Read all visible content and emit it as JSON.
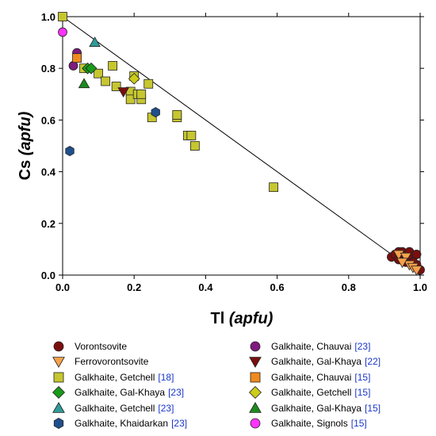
{
  "colors": {
    "vorontsovite": "#7a0f0f",
    "ferrovorontsovite": "#f6a14b",
    "getchell18": "#c6c630",
    "galkhaya23": "#1a9a1a",
    "getchell23": "#2f9b96",
    "khaidarkan23": "#1f4f8c",
    "chauvai23": "#7f1a7f",
    "galkhaya22": "#7a0f0f",
    "chauvai15": "#f08a1e",
    "getchell15": "#cccc1a",
    "galkhaya15": "#1d8a1d",
    "signols15": "#ff33ff"
  },
  "chart_data": {
    "type": "scatter",
    "xlabel_main": "Tl",
    "xlabel_unit": "(apfu)",
    "ylabel_main": "Cs",
    "ylabel_unit": "(apfu)",
    "xlim": [
      0,
      1
    ],
    "ylim": [
      0,
      1
    ],
    "x_ticks": [
      "0.0",
      "0.2",
      "0.4",
      "0.6",
      "0.8",
      "1.0"
    ],
    "y_ticks": [
      "0.0",
      "0.2",
      "0.4",
      "0.6",
      "0.8",
      "1.0"
    ],
    "reference_line": {
      "x": [
        0,
        1
      ],
      "y": [
        1,
        0
      ]
    },
    "legend_position": "bottom",
    "series": [
      {
        "key": "vorontsovite",
        "name": "Vorontsovite",
        "ref": "",
        "marker": "circle",
        "points": [
          [
            0.92,
            0.07
          ],
          [
            0.93,
            0.08
          ],
          [
            0.94,
            0.09
          ],
          [
            0.95,
            0.09
          ],
          [
            0.96,
            0.08
          ],
          [
            0.97,
            0.09
          ],
          [
            0.98,
            0.07
          ],
          [
            0.97,
            0.06
          ],
          [
            0.99,
            0.04
          ],
          [
            0.99,
            0.08
          ],
          [
            0.96,
            0.05
          ],
          [
            0.95,
            0.07
          ],
          [
            0.94,
            0.06
          ],
          [
            0.98,
            0.05
          ],
          [
            1.0,
            0.02
          ]
        ]
      },
      {
        "key": "ferrovorontsovite",
        "name": "Ferrovorontsovite",
        "ref": "",
        "marker": "triangle-down",
        "points": [
          [
            0.94,
            0.08
          ],
          [
            0.96,
            0.07
          ],
          [
            0.97,
            0.04
          ],
          [
            0.98,
            0.03
          ],
          [
            0.99,
            0.02
          ],
          [
            0.95,
            0.05
          ]
        ]
      },
      {
        "key": "getchell18",
        "name": "Galkhaite, Getchell",
        "ref": "[18]",
        "marker": "square",
        "points": [
          [
            0.0,
            1.0
          ],
          [
            0.06,
            0.8
          ],
          [
            0.1,
            0.78
          ],
          [
            0.12,
            0.75
          ],
          [
            0.14,
            0.81
          ],
          [
            0.15,
            0.73
          ],
          [
            0.19,
            0.71
          ],
          [
            0.19,
            0.68
          ],
          [
            0.2,
            0.77
          ],
          [
            0.21,
            0.7
          ],
          [
            0.22,
            0.68
          ],
          [
            0.22,
            0.7
          ],
          [
            0.24,
            0.74
          ],
          [
            0.25,
            0.61
          ],
          [
            0.32,
            0.61
          ],
          [
            0.32,
            0.62
          ],
          [
            0.35,
            0.54
          ],
          [
            0.36,
            0.54
          ],
          [
            0.37,
            0.5
          ],
          [
            0.59,
            0.34
          ]
        ]
      },
      {
        "key": "galkhaya23",
        "name": "Galkhaite, Gal-Khaya",
        "ref": "[23]",
        "marker": "diamond",
        "points": [
          [
            0.07,
            0.8
          ],
          [
            0.08,
            0.8
          ]
        ]
      },
      {
        "key": "getchell23",
        "name": "Galkhaite, Getchell",
        "ref": "[23]",
        "marker": "triangle-up",
        "points": [
          [
            0.09,
            0.9
          ]
        ]
      },
      {
        "key": "khaidarkan23",
        "name": "Galkhaite, Khaidarkan",
        "ref": "[23]",
        "marker": "hexagon",
        "points": [
          [
            0.02,
            0.48
          ],
          [
            0.26,
            0.63
          ]
        ]
      },
      {
        "key": "chauvai23",
        "name": "Galkhaite, Chauvai",
        "ref": "[23]",
        "marker": "circle",
        "points": [
          [
            0.03,
            0.81
          ],
          [
            0.04,
            0.86
          ]
        ]
      },
      {
        "key": "galkhaya22",
        "name": "Galkhaite, Gal-Khaya",
        "ref": "[22]",
        "marker": "triangle-down",
        "points": [
          [
            0.17,
            0.71
          ]
        ]
      },
      {
        "key": "chauvai15",
        "name": "Galkhaite, Chauvai",
        "ref": "[15]",
        "marker": "square",
        "points": [
          [
            0.04,
            0.84
          ]
        ]
      },
      {
        "key": "getchell15",
        "name": "Galkhaite, Getchell",
        "ref": "[15]",
        "marker": "diamond",
        "points": [
          [
            0.2,
            0.76
          ]
        ]
      },
      {
        "key": "galkhaya15",
        "name": "Galkhaite, Gal-Khaya",
        "ref": "[15]",
        "marker": "triangle-up",
        "points": [
          [
            0.06,
            0.74
          ]
        ]
      },
      {
        "key": "signols15",
        "name": "Galkhaite, Signols",
        "ref": "[15]",
        "marker": "circle",
        "points": [
          [
            0.0,
            0.94
          ]
        ]
      }
    ]
  },
  "legend": {
    "left": [
      "vorontsovite",
      "ferrovorontsovite",
      "getchell18",
      "galkhaya23",
      "getchell23",
      "khaidarkan23"
    ],
    "right": [
      "chauvai23",
      "galkhaya22",
      "chauvai15",
      "getchell15",
      "galkhaya15",
      "signols15"
    ]
  }
}
